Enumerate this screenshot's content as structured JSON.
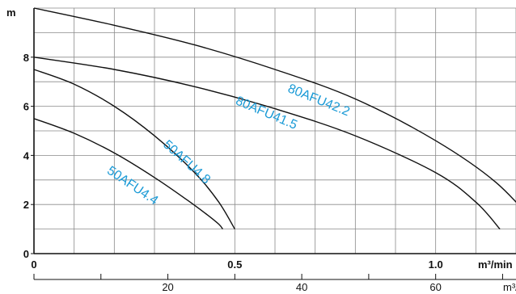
{
  "chart_data": {
    "type": "line",
    "title": "",
    "ylabel": "m",
    "xlabel": "m³/min",
    "x2label": "m³/h",
    "xlim": [
      0,
      1.2
    ],
    "ylim": [
      0,
      10
    ],
    "x_ticks": [
      "0",
      "0.5",
      "1.0"
    ],
    "y_ticks": [
      "0",
      "2",
      "4",
      "6",
      "8"
    ],
    "x2_ticks": [
      "20",
      "40",
      "60"
    ],
    "x2_factor": 60,
    "grid": true,
    "label_color": "#1a9ad6",
    "line_color": "#111111",
    "series": [
      {
        "name": "50AFU4.4",
        "x": [
          0,
          0.1,
          0.2,
          0.3,
          0.38,
          0.43,
          0.46,
          0.47
        ],
        "y": [
          5.5,
          4.9,
          4.1,
          3.1,
          2.2,
          1.6,
          1.2,
          1.0
        ],
        "label_pos": [
          0.18,
          3.3
        ],
        "label_angle": 34
      },
      {
        "name": "50AFU4.8",
        "x": [
          0,
          0.1,
          0.2,
          0.3,
          0.4,
          0.46,
          0.5
        ],
        "y": [
          7.5,
          6.9,
          6.0,
          4.8,
          3.3,
          2.1,
          1.0
        ],
        "label_pos": [
          0.32,
          4.4
        ],
        "label_angle": 42
      },
      {
        "name": "80AFU41.5",
        "x": [
          0,
          0.2,
          0.4,
          0.6,
          0.8,
          1.0,
          1.1,
          1.16
        ],
        "y": [
          8.0,
          7.5,
          6.8,
          5.9,
          4.8,
          3.3,
          2.1,
          1.0
        ],
        "label_pos": [
          0.5,
          6.1
        ],
        "label_angle": 23
      },
      {
        "name": "80AFU42.2",
        "x": [
          0,
          0.2,
          0.4,
          0.6,
          0.8,
          1.0,
          1.15,
          1.26
        ],
        "y": [
          10.0,
          9.3,
          8.5,
          7.5,
          6.3,
          4.6,
          2.9,
          1.0
        ],
        "label_pos": [
          0.63,
          6.6
        ],
        "label_angle": 22
      }
    ]
  }
}
